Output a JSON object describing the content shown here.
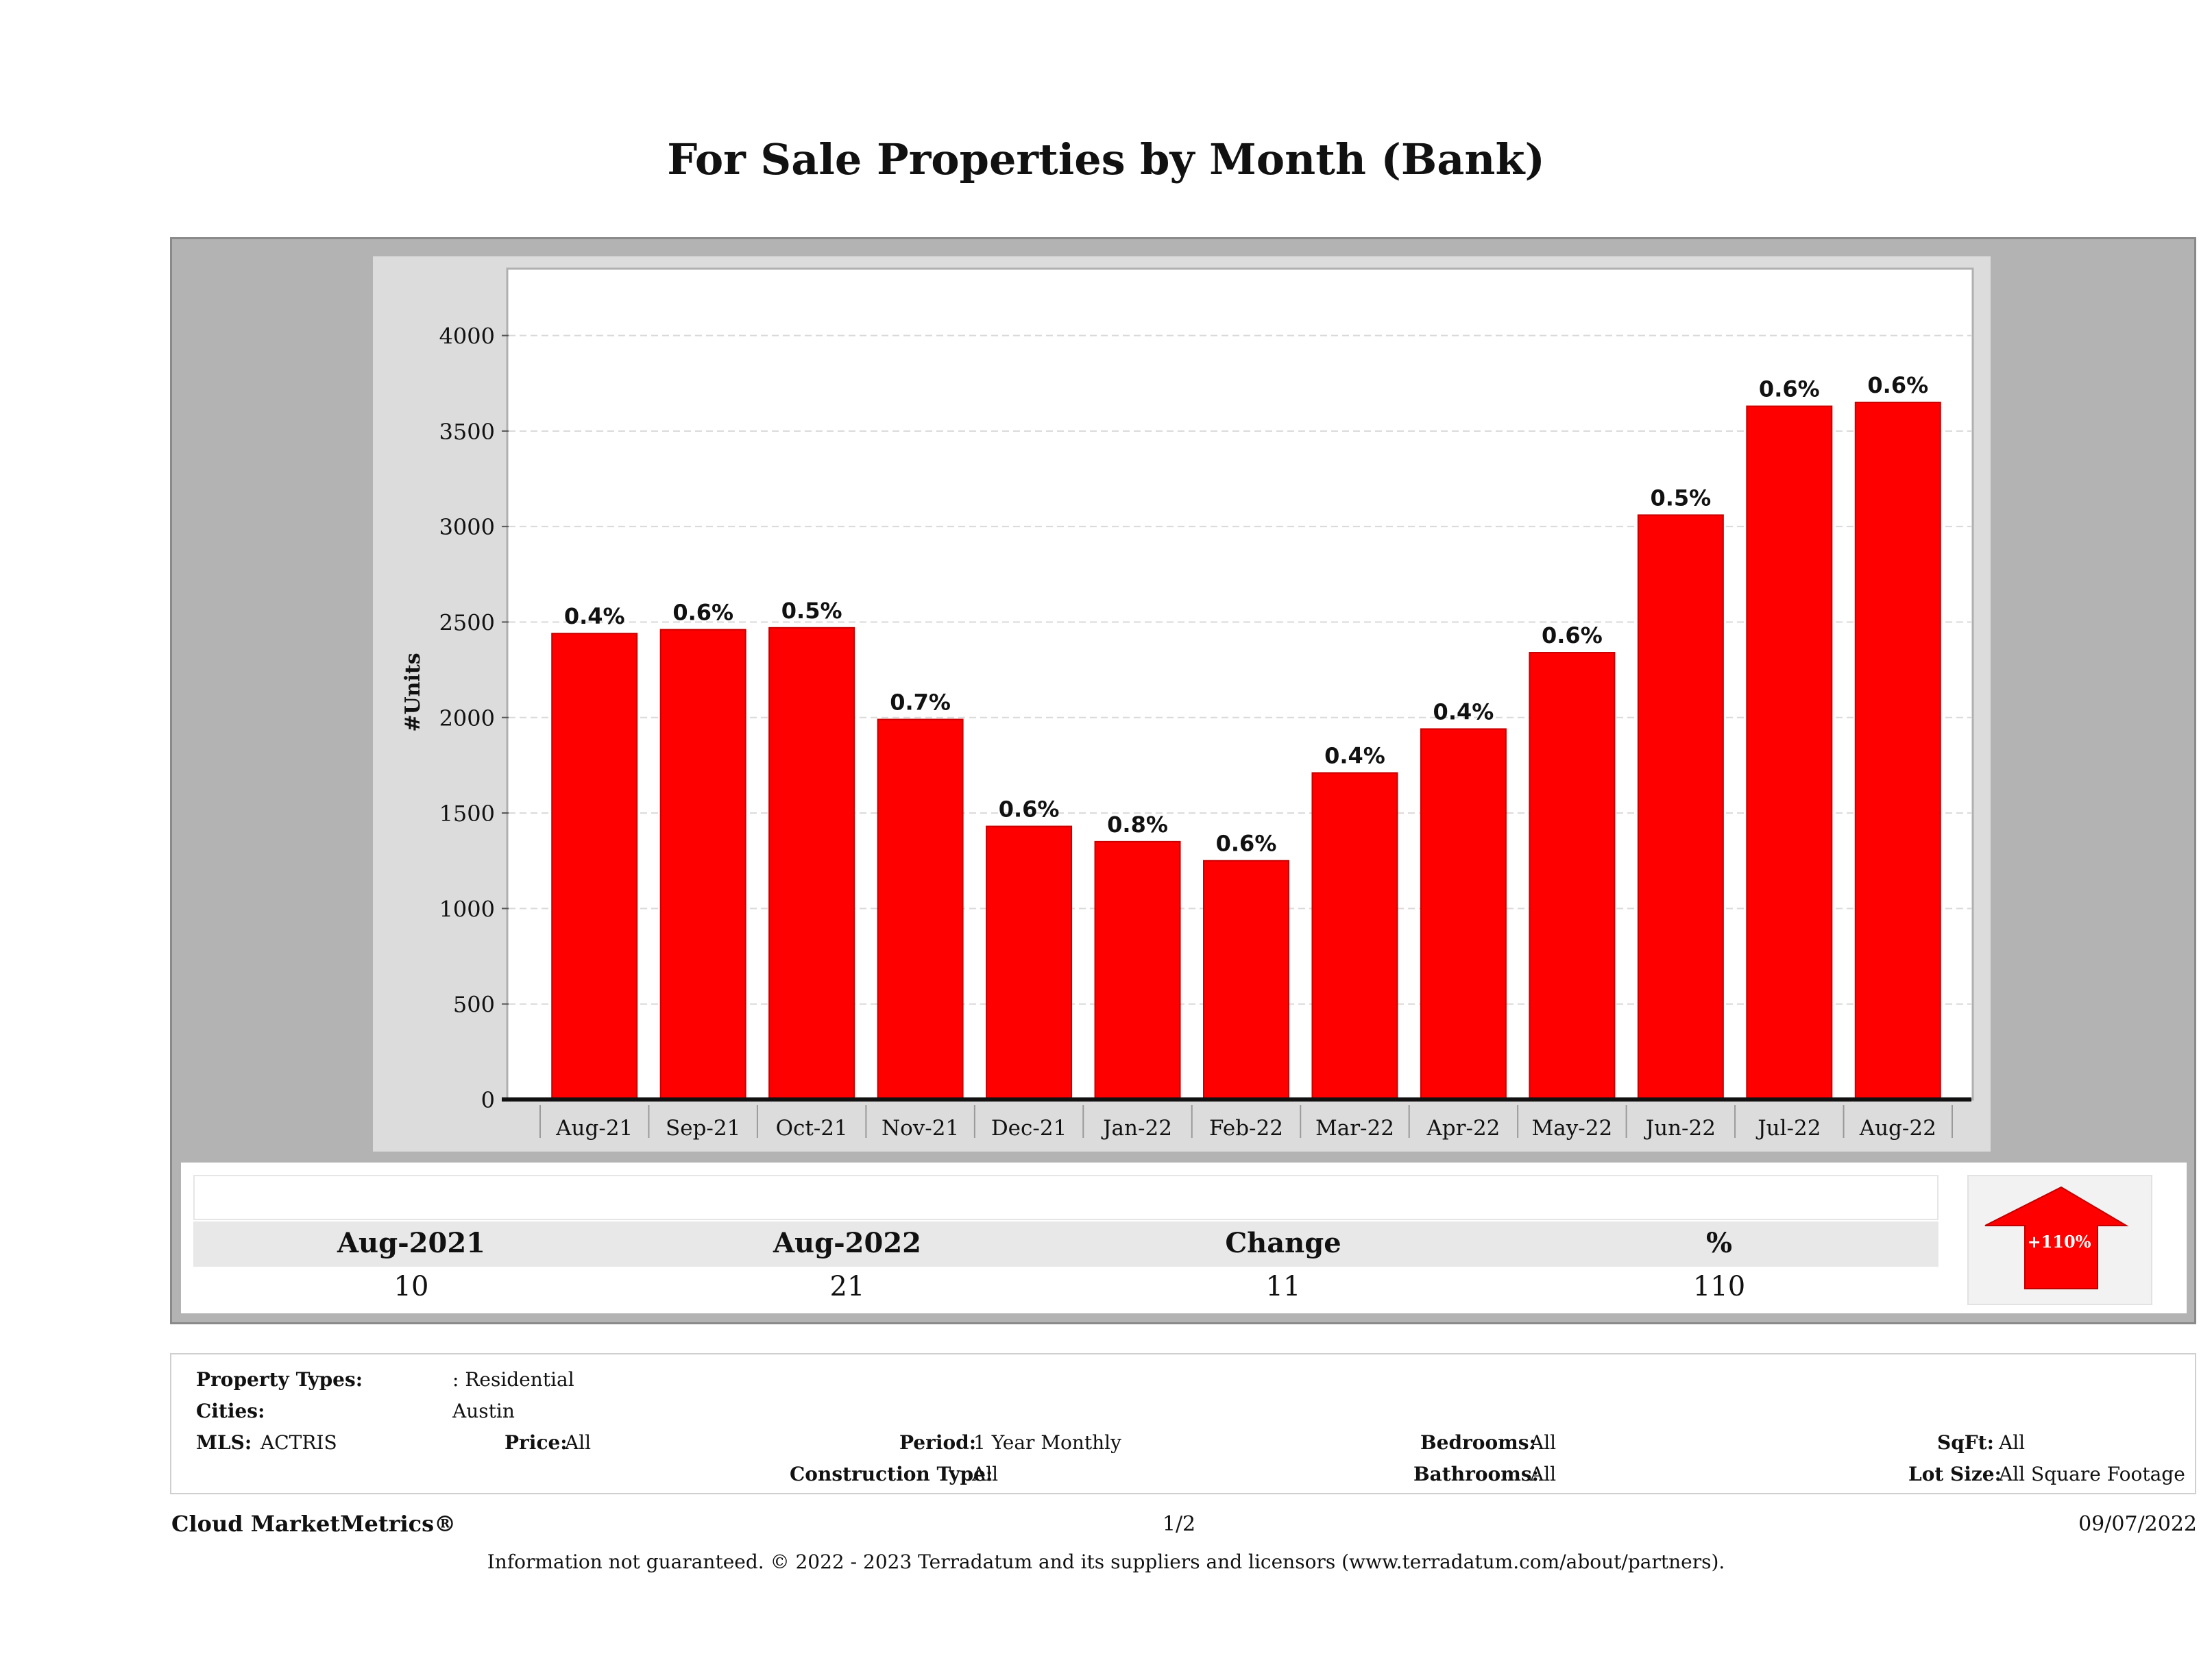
{
  "title": "For Sale Properties by Month (Bank)",
  "colors": {
    "bar": "#ff0000",
    "bar_edge": "#c80000",
    "panel": "#b3b3b3"
  },
  "chart_data": {
    "type": "bar",
    "ylabel": "#Units",
    "xlabel": "",
    "ylim": [
      0,
      4350
    ],
    "yticks": [
      0,
      500,
      1000,
      1500,
      2000,
      2500,
      3000,
      3500,
      4000
    ],
    "grid": true,
    "categories": [
      "Aug-21",
      "Sep-21",
      "Oct-21",
      "Nov-21",
      "Dec-21",
      "Jan-22",
      "Feb-22",
      "Mar-22",
      "Apr-22",
      "May-22",
      "Jun-22",
      "Jul-22",
      "Aug-22"
    ],
    "values": [
      2440,
      2460,
      2470,
      1990,
      1430,
      1350,
      1250,
      1710,
      1940,
      2340,
      3060,
      3630,
      3650
    ],
    "bar_labels": [
      "0.4%",
      "0.6%",
      "0.5%",
      "0.7%",
      "0.6%",
      "0.8%",
      "0.6%",
      "0.4%",
      "0.4%",
      "0.6%",
      "0.5%",
      "0.6%",
      "0.6%"
    ]
  },
  "summary": {
    "headers": [
      "Aug-2021",
      "Aug-2022",
      "Change",
      "%"
    ],
    "values": [
      "10",
      "21",
      "11",
      "110"
    ],
    "badge": "+110%"
  },
  "filters": {
    "property_types_label": "Property Types:",
    "property_types_value": ": Residential",
    "cities_label": "Cities:",
    "cities_value": "Austin",
    "mls_label": "MLS:",
    "mls_value": "ACTRIS",
    "price_label": "Price:",
    "price_value": "All",
    "period_label": "Period:",
    "period_value": "1 Year Monthly",
    "construction_label": "Construction Type:",
    "construction_value": "All",
    "bedrooms_label": "Bedrooms:",
    "bedrooms_value": "All",
    "bathrooms_label": "Bathrooms:",
    "bathrooms_value": "All",
    "sqft_label": "SqFt:",
    "sqft_value": "All",
    "lotsize_label": "Lot Size:",
    "lotsize_value": "All Square Footage"
  },
  "footer": {
    "brand": "Cloud MarketMetrics®",
    "page": "1/2",
    "date": "09/07/2022",
    "disclaimer": "Information not guaranteed. © 2022 - 2023 Terradatum and its suppliers and licensors (www.terradatum.com/about/partners)."
  }
}
